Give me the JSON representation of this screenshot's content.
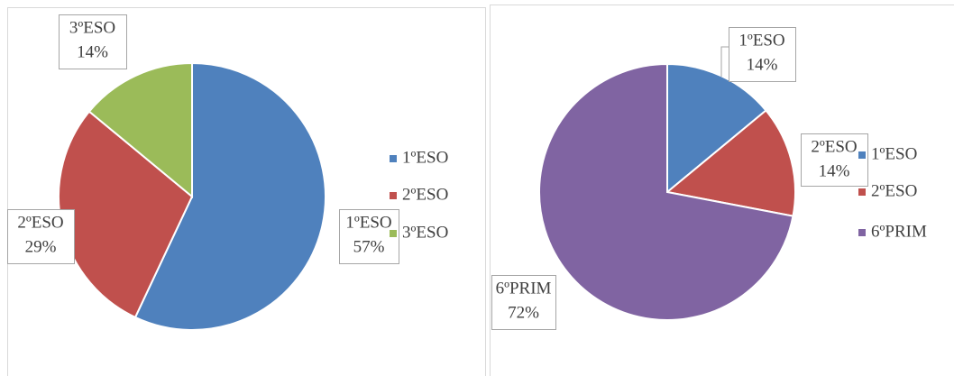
{
  "chart_data": [
    {
      "type": "pie",
      "categories": [
        "1ºESO",
        "2ºESO",
        "3ºESO"
      ],
      "values": [
        57,
        29,
        14
      ],
      "value_labels": [
        "57%",
        "29%",
        "14%"
      ],
      "colors": [
        "#4f81bd",
        "#c0504d",
        "#9bbb59"
      ],
      "legend": "right"
    },
    {
      "type": "pie",
      "categories": [
        "1ºESO",
        "2ºESO",
        "6ºPRIM"
      ],
      "values": [
        14,
        14,
        72
      ],
      "value_labels": [
        "14%",
        "14%",
        "72%"
      ],
      "colors": [
        "#4f81bd",
        "#c0504d",
        "#8064a2"
      ],
      "legend": "right"
    }
  ]
}
